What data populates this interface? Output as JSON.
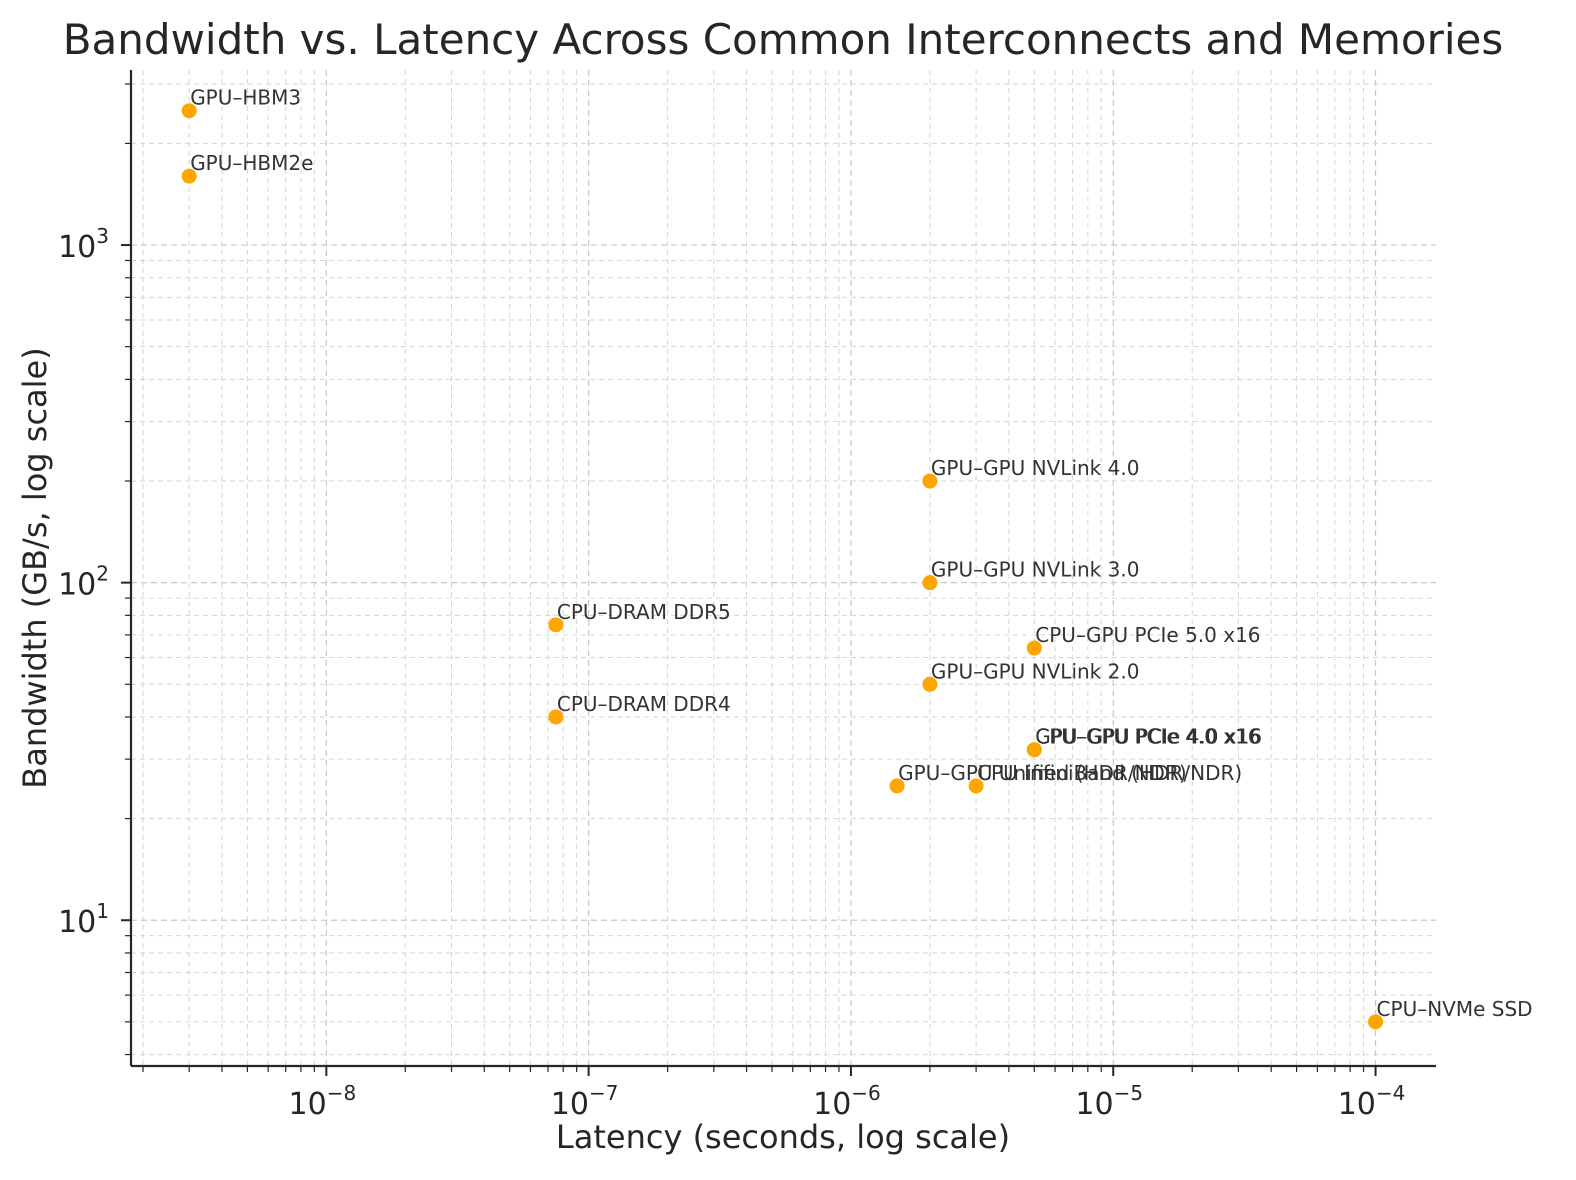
{
  "chart_data": {
    "type": "scatter",
    "title": "Bandwidth vs. Latency Across Common Interconnects and Memories",
    "xlabel": "Latency (seconds, log scale)",
    "ylabel": "Bandwidth (GB/s, log scale)",
    "xscale": "log",
    "yscale": "log",
    "xlim": [
      1.8e-09,
      0.00017
    ],
    "ylim": [
      3.7,
      3300
    ],
    "grid": true,
    "marker_color": "#FFA500",
    "x_ticks": [
      {
        "value": 1e-08,
        "base": "10",
        "exp": "−8"
      },
      {
        "value": 1e-07,
        "base": "10",
        "exp": "−7"
      },
      {
        "value": 1e-06,
        "base": "10",
        "exp": "−6"
      },
      {
        "value": 1e-05,
        "base": "10",
        "exp": "−5"
      },
      {
        "value": 0.0001,
        "base": "10",
        "exp": "−4"
      }
    ],
    "y_ticks": [
      {
        "value": 10,
        "base": "10",
        "exp": "1"
      },
      {
        "value": 100,
        "base": "10",
        "exp": "2"
      },
      {
        "value": 1000,
        "base": "10",
        "exp": "3"
      }
    ],
    "points": [
      {
        "label": "GPU–HBM3",
        "x": 3e-09,
        "y": 2500
      },
      {
        "label": "GPU–HBM2e",
        "x": 3e-09,
        "y": 1600
      },
      {
        "label": "GPU–GPU NVLink 4.0",
        "x": 2e-06,
        "y": 200
      },
      {
        "label": "GPU–GPU NVLink 3.0",
        "x": 2e-06,
        "y": 100
      },
      {
        "label": "CPU–DRAM DDR5",
        "x": 7.5e-08,
        "y": 75
      },
      {
        "label": "CPU–GPU PCIe 5.0 x16",
        "x": 5e-06,
        "y": 64
      },
      {
        "label": "GPU–GPU NVLink 2.0",
        "x": 2e-06,
        "y": 50
      },
      {
        "label": "CPU–DRAM DDR4",
        "x": 7.5e-08,
        "y": 40
      },
      {
        "label": "CPU–GPU PCIe 4.0 x16",
        "x": 5e-06,
        "y": 32
      },
      {
        "label": "GPU–GPU PCIe 4.0 x16",
        "x": 5e-06,
        "y": 32
      },
      {
        "label": "GPU–GPU Unified (HDR/NDR)",
        "x": 1.5e-06,
        "y": 25
      },
      {
        "label": "CPU InfiniBand (HDR/NDR)",
        "x": 3e-06,
        "y": 25
      },
      {
        "label": "CPU–NVMe SSD",
        "x": 0.0001,
        "y": 5
      }
    ]
  }
}
